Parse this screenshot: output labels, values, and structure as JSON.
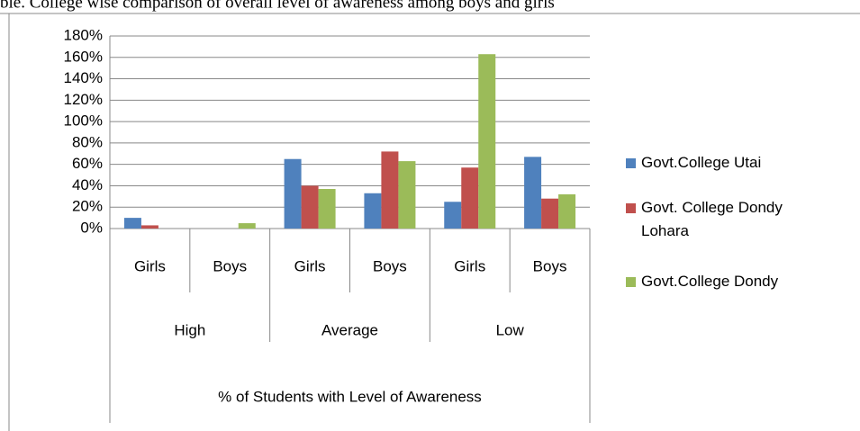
{
  "chart_data": {
    "type": "bar",
    "title": "ble. College wise comparison of overall level of awareness among boys and girls",
    "categories": [
      "Girls",
      "Boys",
      "Girls",
      "Boys",
      "Girls",
      "Boys"
    ],
    "groups": [
      "High",
      "Average",
      "Low"
    ],
    "x_label": "% of Students with Level of Awareness",
    "series": [
      {
        "name": "Govt.College Utai",
        "color": "#4f81bd",
        "values": [
          10,
          0,
          65,
          33,
          25,
          67
        ]
      },
      {
        "name": "Govt. College Dondy Lohara",
        "color": "#c0504d",
        "values": [
          3,
          0,
          40,
          72,
          57,
          28
        ]
      },
      {
        "name": "Govt.College Dondy",
        "color": "#9bbb59",
        "values": [
          0,
          5,
          37,
          63,
          163,
          32
        ]
      }
    ],
    "ylim": [
      0,
      180
    ],
    "yticks": [
      {
        "value": 0,
        "label": "0%"
      },
      {
        "value": 20,
        "label": "20%"
      },
      {
        "value": 40,
        "label": "40%"
      },
      {
        "value": 60,
        "label": "60%"
      },
      {
        "value": 80,
        "label": "80%"
      },
      {
        "value": 100,
        "label": "100%"
      },
      {
        "value": 120,
        "label": "120%"
      },
      {
        "value": 140,
        "label": "140%"
      },
      {
        "value": 160,
        "label": "160%"
      },
      {
        "value": 180,
        "label": "180%"
      }
    ],
    "grid": true,
    "legend": "right"
  }
}
